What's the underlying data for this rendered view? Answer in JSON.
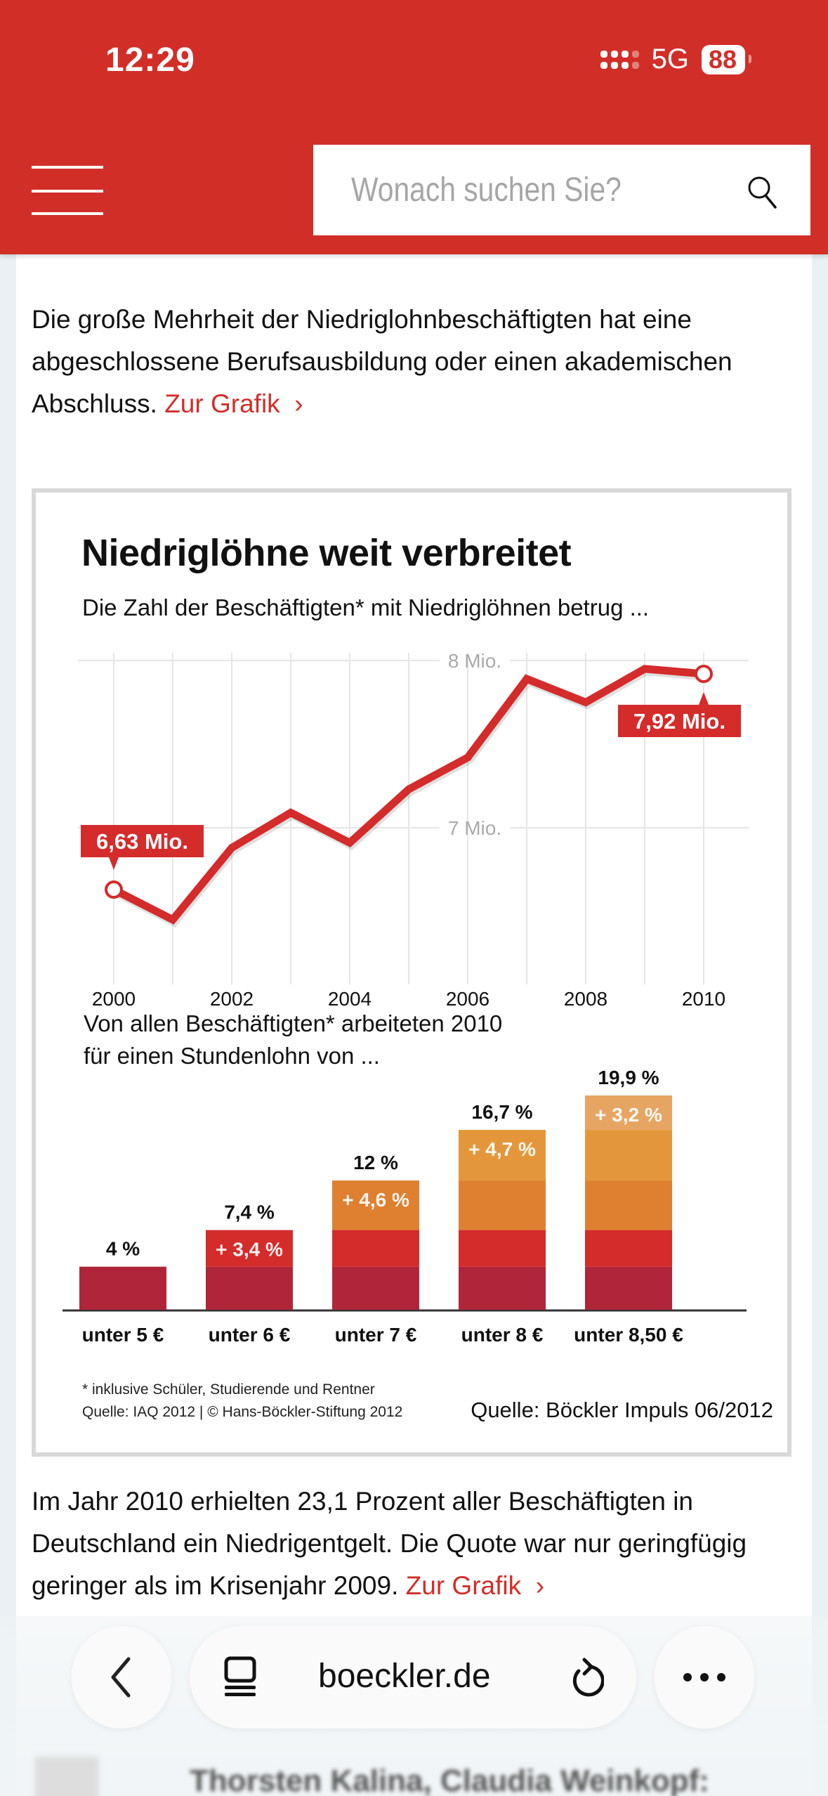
{
  "status_bar": {
    "time": "12:29",
    "network": "5G",
    "battery": "88"
  },
  "header": {
    "menu_icon": "hamburger-menu-icon",
    "search": {
      "placeholder": "Wonach suchen Sie?",
      "value": "",
      "icon": "search-icon"
    }
  },
  "article": {
    "paragraph1": {
      "text": "Die große Mehrheit der Niedriglohnbeschäftigten hat eine abgeschlossene Berufsausbildung oder einen akademischen Abschluss.",
      "link": "Zur Grafik",
      "link_icon": "›"
    },
    "paragraph2": {
      "text": "Im Jahr 2010 erhielten 23,1 Prozent aller Beschäftigten in Deutschland ein Niedrigentgelt. Die Quote war nur geringfügig geringer als im Krisenjahr 2009.",
      "link": "Zur Grafik",
      "link_icon": "›"
    }
  },
  "infographic": {
    "title": "Niedriglöhne weit verbreitet",
    "footnote": "* inklusive Schüler, Studierende und Rentner",
    "credit": "Quelle: IAQ 2012 | © Hans-Böckler-Stiftung 2012",
    "source": "Quelle: Böckler Impuls 06/2012"
  },
  "chart_data": [
    {
      "type": "line",
      "title": "Die Zahl der Beschäftigten* mit Niedriglöhnen betrug ...",
      "x": [
        2000,
        2001,
        2002,
        2003,
        2004,
        2005,
        2006,
        2007,
        2008,
        2009,
        2010
      ],
      "x_tick_labels": [
        "2000",
        "2002",
        "2004",
        "2006",
        "2008",
        "2010"
      ],
      "series": [
        {
          "name": "Beschäftigte mit Niedriglöhnen (Mio.)",
          "values": [
            6.63,
            6.45,
            6.88,
            7.09,
            6.91,
            7.23,
            7.42,
            7.89,
            7.75,
            7.95,
            7.92
          ],
          "color": "#d42b2b"
        }
      ],
      "y_tick_labels": [
        "7 Mio.",
        "8 Mio."
      ],
      "y_ticks": [
        7,
        8
      ],
      "ylim": [
        6.35,
        8.05
      ],
      "annotations": [
        {
          "x": 2000,
          "label": "6,63 Mio."
        },
        {
          "x": 2010,
          "label": "7,92 Mio."
        }
      ],
      "grid": true
    },
    {
      "type": "bar",
      "stacked": true,
      "title": "Von allen Beschäftigten* arbeiteten 2010 für einen Stundenlohn von ...",
      "title_lines": [
        "Von allen Beschäftigten* arbeiteten 2010",
        "für einen Stundenlohn von ..."
      ],
      "categories": [
        "unter 5 €",
        "unter 6 €",
        "unter 7 €",
        "unter 8 €",
        "unter 8,50 €"
      ],
      "totals": [
        4,
        7.4,
        12,
        16.7,
        19.9
      ],
      "total_labels": [
        "4 %",
        "7,4 %",
        "12 %",
        "16,7 %",
        "19,9 %"
      ],
      "increments": [
        4,
        3.4,
        4.6,
        4.7,
        3.2
      ],
      "increment_labels": [
        "",
        "+ 3,4 %",
        "+ 4,6 %",
        "+ 4,7 %",
        "+ 3,2 %"
      ],
      "segment_colors": [
        "#b1253a",
        "#d42b2b",
        "#de8030",
        "#e4973a",
        "#e7a564"
      ],
      "ylim": [
        0,
        20
      ]
    }
  ],
  "browser": {
    "url": "boeckler.de",
    "back_icon": "chevron-left-icon",
    "tabs_icon": "tabs-icon",
    "reload_icon": "reload-icon",
    "more_icon": "ellipsis-icon",
    "next_content_preview": "Thorsten Kalina, Claudia Weinkopf:"
  },
  "colors": {
    "brand_red": "#d22e28",
    "link": "#d22e28",
    "side_background": "#e9f1f4"
  }
}
